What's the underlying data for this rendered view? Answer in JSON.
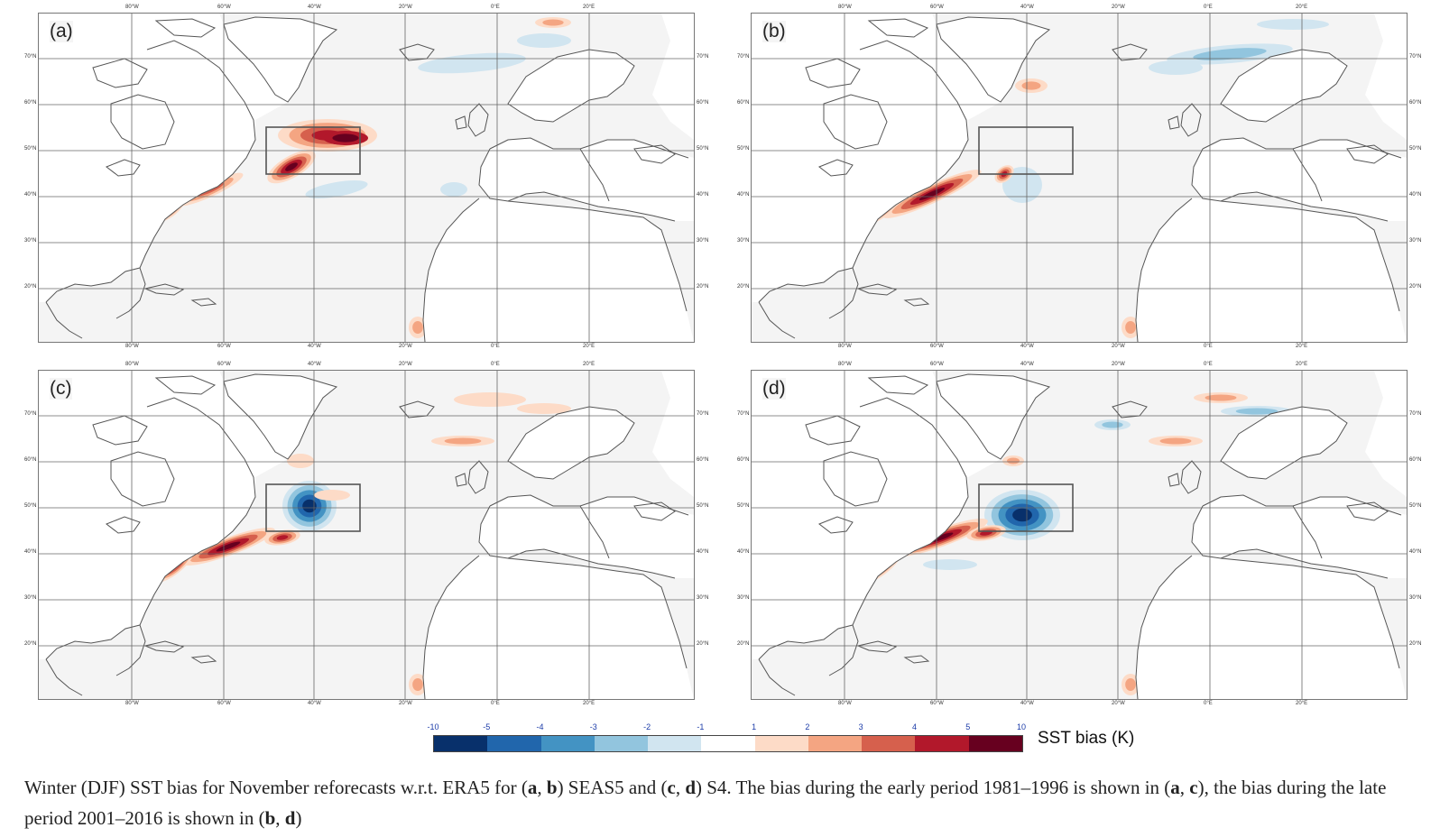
{
  "panels": [
    {
      "label": "(a)"
    },
    {
      "label": "(b)"
    },
    {
      "label": "(c)"
    },
    {
      "label": "(d)"
    }
  ],
  "lon_ticks": [
    "80°W",
    "60°W",
    "40°W",
    "20°W",
    "0°E",
    "20°E"
  ],
  "lat_ticks": [
    "70°N",
    "60°N",
    "50°N",
    "40°N",
    "30°N",
    "20°N"
  ],
  "colorbar": {
    "ticks": [
      "-10",
      "-5",
      "-4",
      "-3",
      "-2",
      "-1",
      "1",
      "2",
      "3",
      "4",
      "5",
      "10"
    ],
    "title": "SST bias (K)",
    "colors": [
      "#08306b",
      "#2166ac",
      "#4393c3",
      "#92c5de",
      "#d1e5f0",
      "#ffffff",
      "#fddbc7",
      "#f4a582",
      "#d6604d",
      "#b2182b",
      "#67001f"
    ]
  },
  "caption": {
    "p1": "Winter (DJF) SST bias for November reforecasts w.r.t. ERA5 for (",
    "a1": "a",
    "sep1": ", ",
    "b1": "b",
    "p2": ") SEAS5 and (",
    "c1": "c",
    "sep2": ", ",
    "d1": "d",
    "p3": ") S4. The bias during the early period 1981–1996 is shown in (",
    "a2": "a",
    "sep3": ", ",
    "c2": "c",
    "p4": "), the bias during the late period 2001–2016 is shown in (",
    "b2": "b",
    "sep4": ", ",
    "d2": "d",
    "p5": ")"
  }
}
